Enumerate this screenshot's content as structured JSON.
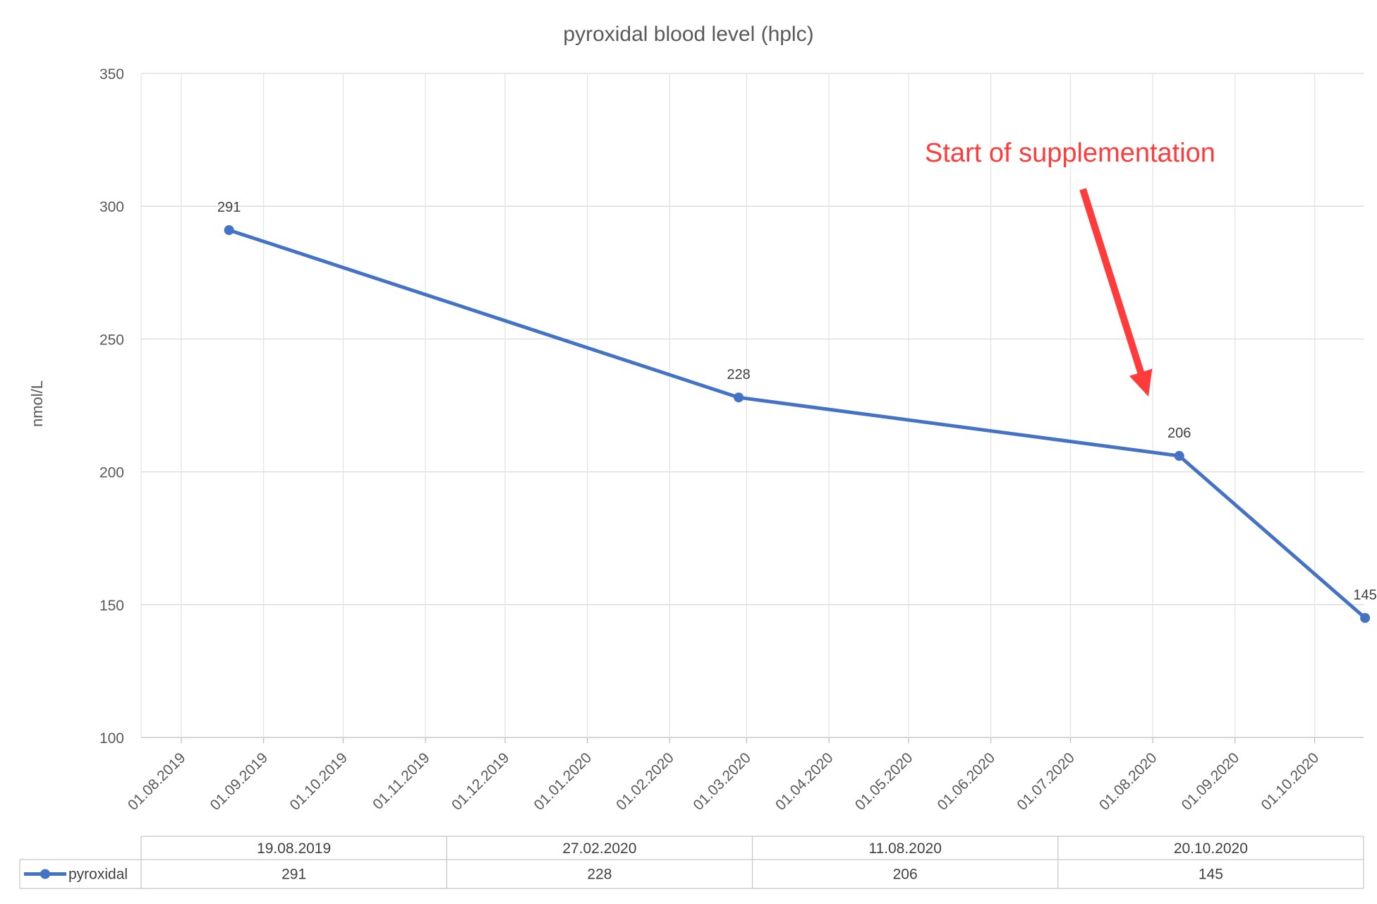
{
  "chart_data": {
    "type": "line",
    "title": "pyroxidal blood level (hplc)",
    "ylabel": "nmol/L",
    "ylim": [
      100,
      350
    ],
    "yticks": [
      100,
      150,
      200,
      250,
      300,
      350
    ],
    "xlim": [
      "01.08.2019",
      "20.10.2020"
    ],
    "xticks": [
      "01.08.2019",
      "01.09.2019",
      "01.10.2019",
      "01.11.2019",
      "01.12.2019",
      "01.01.2020",
      "01.02.2020",
      "01.03.2020",
      "01.04.2020",
      "01.05.2020",
      "01.06.2020",
      "01.07.2020",
      "01.08.2020",
      "01.09.2020",
      "01.10.2020"
    ],
    "grid": true,
    "series": [
      {
        "name": "pyroxidal",
        "color": "#4472c4",
        "x": [
          "19.08.2019",
          "27.02.2020",
          "11.08.2020",
          "20.10.2020"
        ],
        "y": [
          291,
          228,
          206,
          145
        ]
      }
    ],
    "annotations": [
      {
        "text": "Start of supplementation",
        "color": "#ff3b3b",
        "points_to": "11.08.2020"
      }
    ],
    "data_table": {
      "headers": [
        "19.08.2019",
        "27.02.2020",
        "11.08.2020",
        "20.10.2020"
      ],
      "rows": [
        {
          "label": "pyroxidal",
          "values": [
            "291",
            "228",
            "206",
            "145"
          ]
        }
      ]
    }
  }
}
